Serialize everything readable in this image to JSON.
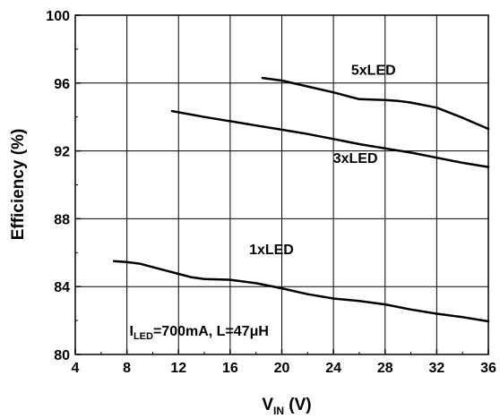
{
  "chart_data": {
    "type": "line",
    "title": "",
    "xlabel": {
      "main": "V",
      "sub": "IN",
      "unit": " (V)"
    },
    "ylabel": "Efficiency (%)",
    "xlim": [
      4,
      36
    ],
    "ylim": [
      80,
      100
    ],
    "xticks": [
      4,
      8,
      12,
      16,
      20,
      24,
      28,
      32,
      36
    ],
    "yticks": [
      80,
      84,
      88,
      92,
      96,
      100
    ],
    "grid": true,
    "series": [
      {
        "name": "1xLED",
        "x": [
          7,
          8,
          9,
          10,
          11,
          12,
          13,
          14,
          16,
          18,
          20,
          22,
          24,
          26,
          28,
          30,
          32,
          34,
          36
        ],
        "y": [
          85.5,
          85.45,
          85.35,
          85.15,
          84.95,
          84.75,
          84.55,
          84.45,
          84.4,
          84.2,
          83.9,
          83.55,
          83.3,
          83.15,
          82.95,
          82.65,
          82.4,
          82.2,
          81.95
        ]
      },
      {
        "name": "3xLED",
        "x": [
          11.5,
          14,
          16,
          18,
          20,
          22,
          24,
          26,
          28,
          30,
          32,
          34,
          36
        ],
        "y": [
          94.35,
          94.0,
          93.75,
          93.5,
          93.25,
          93.0,
          92.7,
          92.4,
          92.15,
          91.9,
          91.6,
          91.3,
          91.05
        ]
      },
      {
        "name": "5xLED",
        "x": [
          18.5,
          20,
          22,
          24,
          26,
          28,
          29,
          30,
          32,
          34,
          36
        ],
        "y": [
          96.3,
          96.15,
          95.8,
          95.45,
          95.05,
          95.0,
          94.95,
          94.85,
          94.55,
          93.95,
          93.3
        ]
      }
    ],
    "annotations": [
      {
        "series": "1xLED",
        "text": "1xLED",
        "at_x": 19.2,
        "at_y": 85.9
      },
      {
        "series": "3xLED",
        "text": "3xLED",
        "at_x": 25.7,
        "at_y": 91.3
      },
      {
        "series": "5xLED",
        "text": "5xLED",
        "at_x": 27.1,
        "at_y": 96.5
      }
    ],
    "condition": {
      "prefix": "I",
      "sub": "LED",
      "rest": "=700mA, L=47μH",
      "at_x": 8.2,
      "at_y": 81.1
    }
  }
}
